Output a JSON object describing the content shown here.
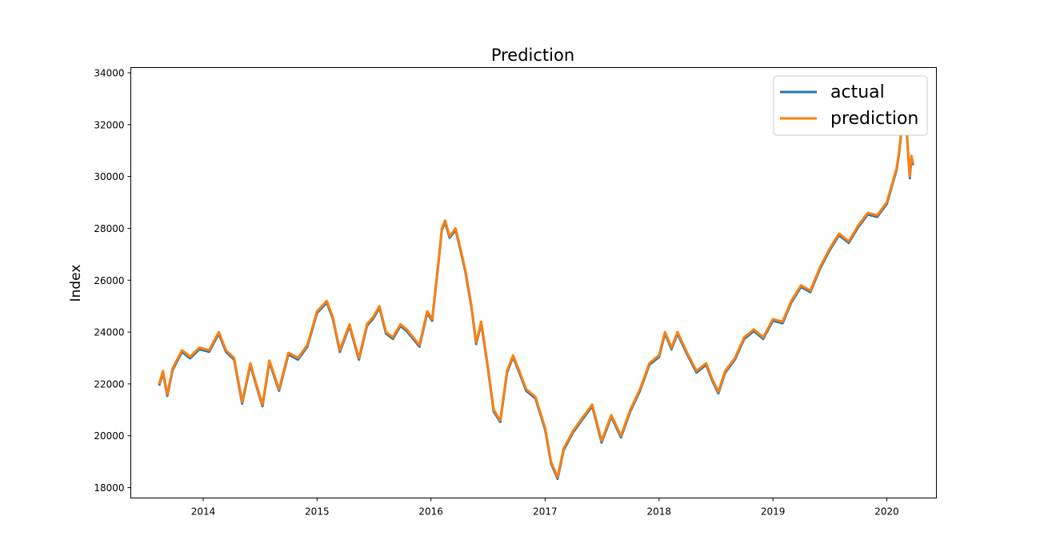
{
  "chart_data": {
    "type": "line",
    "title": "Prediction",
    "xlabel": "",
    "ylabel": "Index",
    "xlim": [
      "2013-05-14",
      "2020-06-08"
    ],
    "ylim": [
      17600,
      34200
    ],
    "xticks": [
      "2014",
      "2015",
      "2016",
      "2017",
      "2018",
      "2019",
      "2020"
    ],
    "yticks": [
      18000,
      20000,
      22000,
      24000,
      26000,
      28000,
      30000,
      32000,
      34000
    ],
    "legend_position": "upper right",
    "grid": false,
    "series": [
      {
        "name": "actual",
        "color": "#1f77b4",
        "points": [
          [
            "2013-08-13",
            22000
          ],
          [
            "2013-08-25",
            22500
          ],
          [
            "2013-09-08",
            21600
          ],
          [
            "2013-09-25",
            22600
          ],
          [
            "2013-10-25",
            23300
          ],
          [
            "2013-11-20",
            23050
          ],
          [
            "2013-12-20",
            23400
          ],
          [
            "2014-01-20",
            23300
          ],
          [
            "2014-02-20",
            24000
          ],
          [
            "2014-03-15",
            23300
          ],
          [
            "2014-04-10",
            23000
          ],
          [
            "2014-05-06",
            21300
          ],
          [
            "2014-06-01",
            22800
          ],
          [
            "2014-06-20",
            22000
          ],
          [
            "2014-07-10",
            21200
          ],
          [
            "2014-08-01",
            22900
          ],
          [
            "2014-09-01",
            21800
          ],
          [
            "2014-10-01",
            23200
          ],
          [
            "2014-11-01",
            23000
          ],
          [
            "2014-12-01",
            23500
          ],
          [
            "2015-01-01",
            24800
          ],
          [
            "2015-02-01",
            25200
          ],
          [
            "2015-02-20",
            24600
          ],
          [
            "2015-03-15",
            23300
          ],
          [
            "2015-04-15",
            24300
          ],
          [
            "2015-05-15",
            23000
          ],
          [
            "2015-06-10",
            24300
          ],
          [
            "2015-07-01",
            24600
          ],
          [
            "2015-07-20",
            25000
          ],
          [
            "2015-08-10",
            24000
          ],
          [
            "2015-09-01",
            23800
          ],
          [
            "2015-09-25",
            24300
          ],
          [
            "2015-10-15",
            24100
          ],
          [
            "2015-11-05",
            23800
          ],
          [
            "2015-11-25",
            23500
          ],
          [
            "2015-12-20",
            24800
          ],
          [
            "2016-01-05",
            24500
          ],
          [
            "2016-01-25",
            26700
          ],
          [
            "2016-02-05",
            28000
          ],
          [
            "2016-02-15",
            28300
          ],
          [
            "2016-03-01",
            27700
          ],
          [
            "2016-03-20",
            28000
          ],
          [
            "2016-04-05",
            27200
          ],
          [
            "2016-04-20",
            26400
          ],
          [
            "2016-05-10",
            25000
          ],
          [
            "2016-05-25",
            23600
          ],
          [
            "2016-06-10",
            24400
          ],
          [
            "2016-07-01",
            22700
          ],
          [
            "2016-07-20",
            21000
          ],
          [
            "2016-08-10",
            20600
          ],
          [
            "2016-09-01",
            22500
          ],
          [
            "2016-09-20",
            23100
          ],
          [
            "2016-10-10",
            22500
          ],
          [
            "2016-11-01",
            21800
          ],
          [
            "2016-12-01",
            21500
          ],
          [
            "2017-01-01",
            20300
          ],
          [
            "2017-01-20",
            19000
          ],
          [
            "2017-02-10",
            18400
          ],
          [
            "2017-03-01",
            19500
          ],
          [
            "2017-04-01",
            20200
          ],
          [
            "2017-05-01",
            20700
          ],
          [
            "2017-06-01",
            21200
          ],
          [
            "2017-07-01",
            19800
          ],
          [
            "2017-08-01",
            20800
          ],
          [
            "2017-09-01",
            20000
          ],
          [
            "2017-10-01",
            21000
          ],
          [
            "2017-11-01",
            21800
          ],
          [
            "2017-12-01",
            22800
          ],
          [
            "2018-01-01",
            23100
          ],
          [
            "2018-01-20",
            24000
          ],
          [
            "2018-02-10",
            23400
          ],
          [
            "2018-03-01",
            24000
          ],
          [
            "2018-04-01",
            23200
          ],
          [
            "2018-05-01",
            22500
          ],
          [
            "2018-06-01",
            22800
          ],
          [
            "2018-06-20",
            22200
          ],
          [
            "2018-07-10",
            21700
          ],
          [
            "2018-08-01",
            22500
          ],
          [
            "2018-09-01",
            23000
          ],
          [
            "2018-10-01",
            23800
          ],
          [
            "2018-11-01",
            24100
          ],
          [
            "2018-12-01",
            23800
          ],
          [
            "2019-01-01",
            24500
          ],
          [
            "2019-02-01",
            24400
          ],
          [
            "2019-03-01",
            25200
          ],
          [
            "2019-04-01",
            25800
          ],
          [
            "2019-05-01",
            25600
          ],
          [
            "2019-06-01",
            26500
          ],
          [
            "2019-07-01",
            27200
          ],
          [
            "2019-08-01",
            27800
          ],
          [
            "2019-09-01",
            27500
          ],
          [
            "2019-10-01",
            28100
          ],
          [
            "2019-11-01",
            28600
          ],
          [
            "2019-12-01",
            28500
          ],
          [
            "2020-01-01",
            29000
          ],
          [
            "2020-01-20",
            29800
          ],
          [
            "2020-02-01",
            30300
          ],
          [
            "2020-02-10",
            31000
          ],
          [
            "2020-02-18",
            32000
          ],
          [
            "2020-02-25",
            33100
          ],
          [
            "2020-03-03",
            32200
          ],
          [
            "2020-03-10",
            30800
          ],
          [
            "2020-03-15",
            30000
          ],
          [
            "2020-03-20",
            30800
          ],
          [
            "2020-03-25",
            30500
          ]
        ]
      },
      {
        "name": "prediction",
        "color": "#ff7f0e",
        "points": []
      }
    ]
  }
}
